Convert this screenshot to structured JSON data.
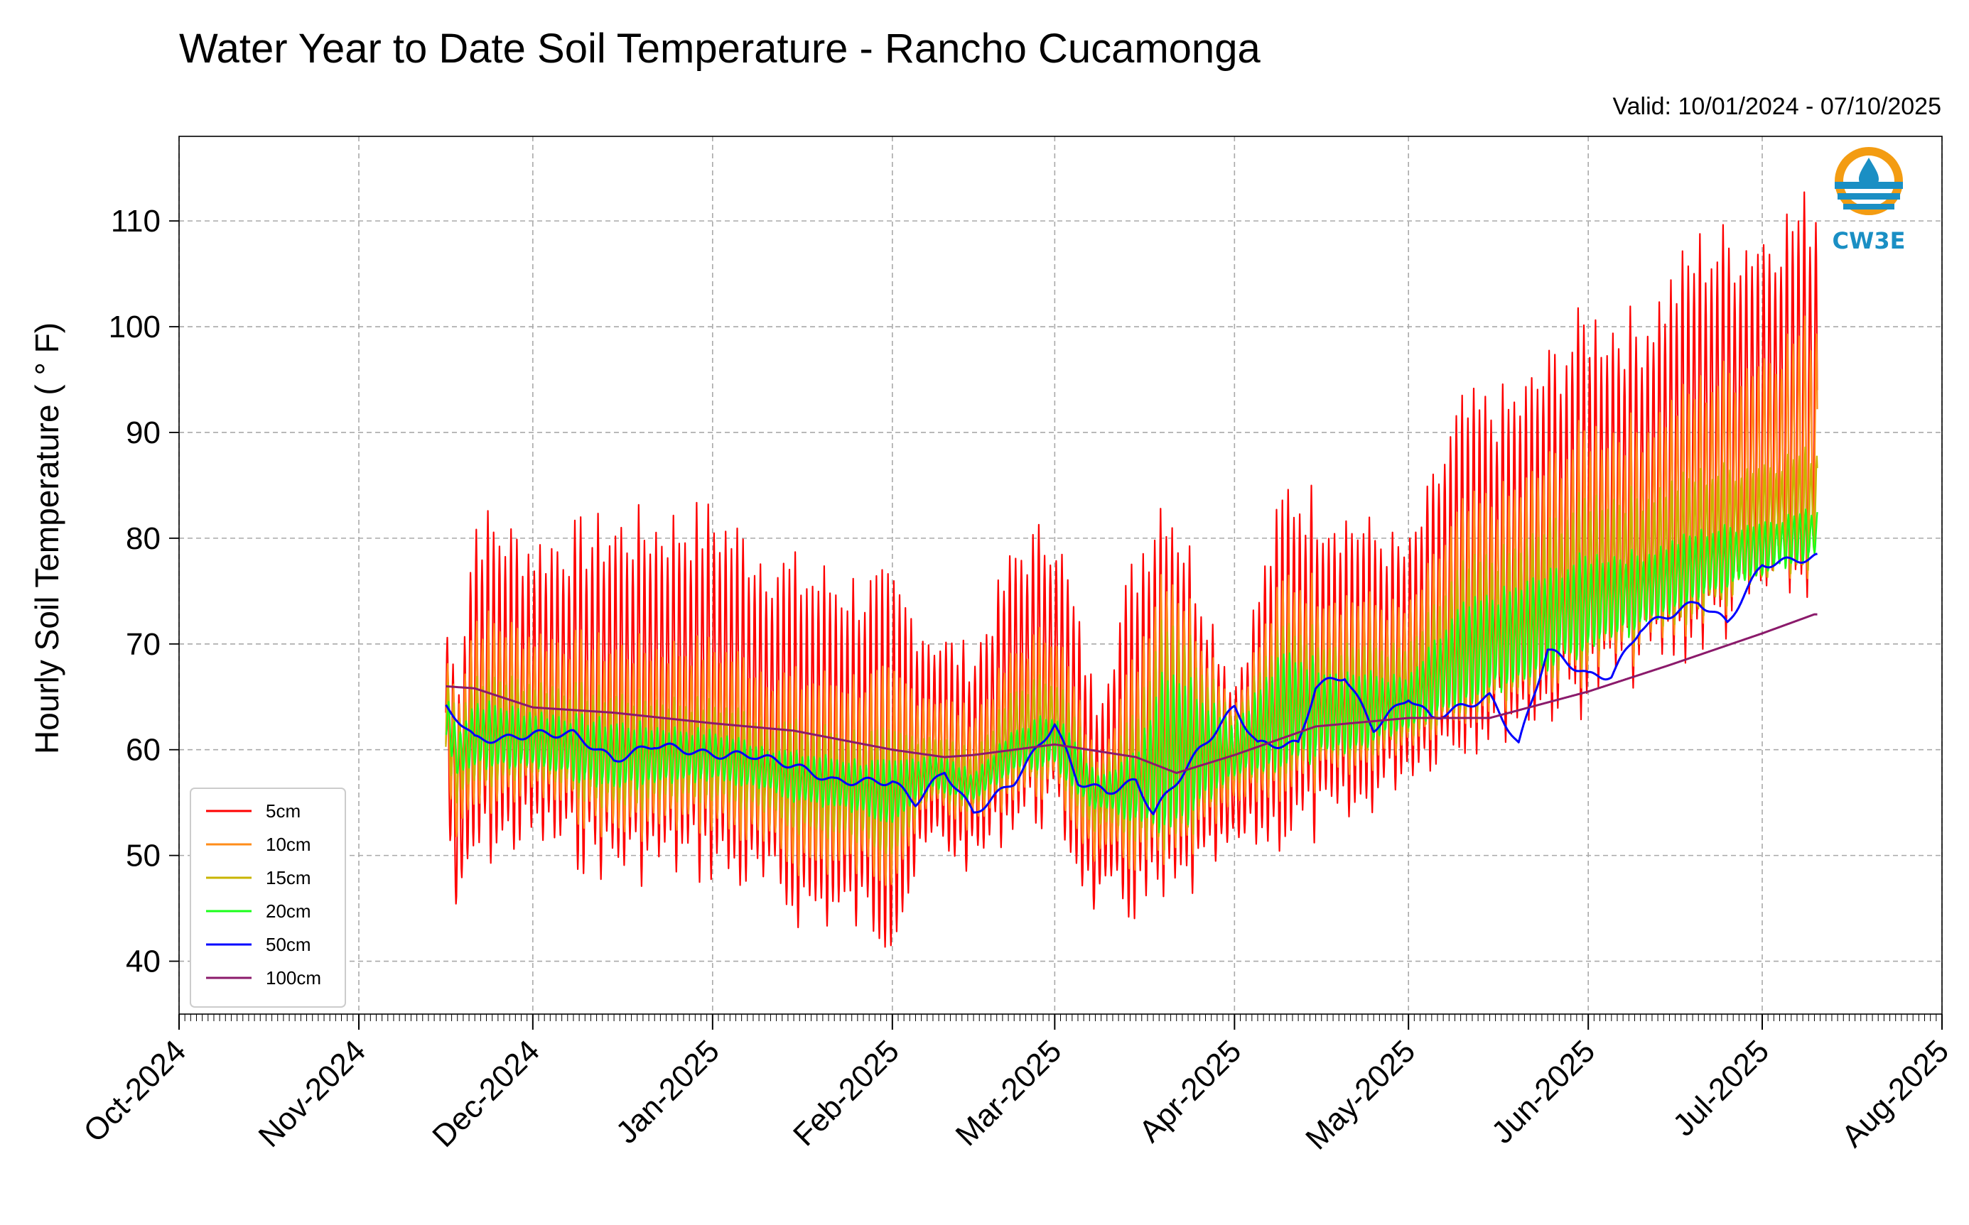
{
  "chart_data": {
    "type": "line",
    "title": "Water Year to Date Soil Temperature - Rancho Cucamonga",
    "subtitle": "Valid: 10/01/2024 - 07/10/2025",
    "ylabel": "Hourly Soil Temperature ( ° F)",
    "xlabel": "",
    "xlim": [
      "2024-10-01",
      "2025-08-01"
    ],
    "ylim": [
      35,
      118
    ],
    "grid": true,
    "legend_position": "lower-left",
    "x_ticks": [
      {
        "date": "2024-10-01",
        "label": "Oct-2024"
      },
      {
        "date": "2024-11-01",
        "label": "Nov-2024"
      },
      {
        "date": "2024-12-01",
        "label": "Dec-2024"
      },
      {
        "date": "2025-01-01",
        "label": "Jan-2025"
      },
      {
        "date": "2025-02-01",
        "label": "Feb-2025"
      },
      {
        "date": "2025-03-01",
        "label": "Mar-2025"
      },
      {
        "date": "2025-04-01",
        "label": "Apr-2025"
      },
      {
        "date": "2025-05-01",
        "label": "May-2025"
      },
      {
        "date": "2025-06-01",
        "label": "Jun-2025"
      },
      {
        "date": "2025-07-01",
        "label": "Jul-2025"
      },
      {
        "date": "2025-08-01",
        "label": "Aug-2025"
      }
    ],
    "y_ticks": [
      40,
      50,
      60,
      70,
      80,
      90,
      100,
      110
    ],
    "series_baseline": {
      "name": "100cm",
      "x": [
        "2024-11-16",
        "2024-11-21",
        "2024-12-01",
        "2024-12-15",
        "2025-01-01",
        "2025-01-15",
        "2025-02-01",
        "2025-02-10",
        "2025-02-15",
        "2025-03-01",
        "2025-03-15",
        "2025-03-22",
        "2025-04-01",
        "2025-04-15",
        "2025-05-01",
        "2025-05-15",
        "2025-06-01",
        "2025-06-15",
        "2025-07-01",
        "2025-07-10"
      ],
      "values": [
        66,
        65.8,
        64,
        63.5,
        62.5,
        61.8,
        60,
        59.3,
        59.5,
        60.5,
        59.3,
        57.8,
        59.5,
        62.2,
        63,
        63,
        65.5,
        68,
        71,
        72.8
      ]
    },
    "series": [
      {
        "name": "5cm",
        "color": "#ff0000",
        "shift": 0,
        "amp": 1.0,
        "x": [
          "2024-11-16",
          "2024-11-18",
          "2024-11-21",
          "2024-12-01",
          "2024-12-15",
          "2025-01-01",
          "2025-01-15",
          "2025-02-01",
          "2025-02-08",
          "2025-02-15",
          "2025-02-22",
          "2025-03-01",
          "2025-03-08",
          "2025-03-15",
          "2025-03-20",
          "2025-04-01",
          "2025-04-10",
          "2025-04-20",
          "2025-05-01",
          "2025-05-10",
          "2025-05-20",
          "2025-06-01",
          "2025-06-10",
          "2025-06-20",
          "2025-07-01",
          "2025-07-10"
        ],
        "upper": [
          73,
          68,
          84,
          81,
          83,
          84,
          79,
          77,
          72,
          70,
          80,
          83,
          66,
          80,
          88,
          67,
          87,
          84,
          80,
          94,
          95,
          103,
          102,
          110,
          111,
          114
        ],
        "lower": [
          54,
          42,
          48,
          50,
          47,
          47,
          43,
          41,
          50,
          48,
          52,
          52,
          44,
          43,
          42,
          50,
          50,
          51,
          57,
          59,
          61,
          63,
          66,
          68,
          72,
          74
        ]
      },
      {
        "name": "10cm",
        "color": "#ff8c1a",
        "shift": 0.08,
        "amp": 0.78,
        "x": [
          "2024-11-16",
          "2024-11-18",
          "2024-11-21",
          "2024-12-01",
          "2024-12-15",
          "2025-01-01",
          "2025-01-15",
          "2025-02-01",
          "2025-02-08",
          "2025-02-15",
          "2025-02-22",
          "2025-03-01",
          "2025-03-08",
          "2025-03-15",
          "2025-03-20",
          "2025-04-01",
          "2025-04-10",
          "2025-04-20",
          "2025-05-01",
          "2025-05-10",
          "2025-05-20",
          "2025-06-01",
          "2025-06-10",
          "2025-06-20",
          "2025-07-01",
          "2025-07-10"
        ],
        "upper": [
          70,
          66,
          74,
          72,
          71,
          71,
          68,
          68,
          66,
          64,
          70,
          73,
          60,
          70,
          81,
          65,
          78,
          76,
          74,
          84,
          86,
          92,
          92,
          96,
          99,
          102
        ],
        "lower": [
          57,
          50,
          53,
          55,
          51,
          52,
          48,
          47,
          54,
          52,
          55,
          55,
          49,
          48,
          46,
          54,
          55,
          56,
          60,
          62,
          64,
          66,
          68,
          71,
          74,
          76
        ]
      },
      {
        "name": "15cm",
        "color": "#c8b400",
        "shift": 0.16,
        "amp": 0.55,
        "x": [
          "2024-11-16",
          "2024-11-18",
          "2024-11-21",
          "2024-12-01",
          "2024-12-15",
          "2025-01-01",
          "2025-01-15",
          "2025-02-01",
          "2025-02-08",
          "2025-02-15",
          "2025-02-22",
          "2025-03-01",
          "2025-03-08",
          "2025-03-15",
          "2025-03-20",
          "2025-04-01",
          "2025-04-10",
          "2025-04-20",
          "2025-05-01",
          "2025-05-10",
          "2025-05-20",
          "2025-06-01",
          "2025-06-10",
          "2025-06-20",
          "2025-07-01",
          "2025-07-10"
        ],
        "upper": [
          68,
          64,
          68,
          67,
          66,
          65,
          63,
          62,
          62,
          60,
          66,
          68,
          59,
          64,
          76,
          64,
          73,
          71,
          70,
          78,
          80,
          85,
          85,
          87,
          88,
          89
        ],
        "lower": [
          59,
          54,
          56,
          57,
          54,
          55,
          52,
          50,
          55,
          54,
          57,
          57,
          52,
          51,
          48,
          56,
          57,
          58,
          61,
          63,
          65,
          68,
          70,
          72,
          75,
          77
        ]
      },
      {
        "name": "20cm",
        "color": "#1aff1a",
        "shift": 0.26,
        "amp": 0.35,
        "x": [
          "2024-11-16",
          "2024-11-18",
          "2024-11-21",
          "2024-12-01",
          "2024-12-15",
          "2025-01-01",
          "2025-01-15",
          "2025-02-01",
          "2025-02-08",
          "2025-02-15",
          "2025-02-22",
          "2025-03-01",
          "2025-03-08",
          "2025-03-15",
          "2025-03-20",
          "2025-04-01",
          "2025-04-10",
          "2025-04-20",
          "2025-05-01",
          "2025-05-10",
          "2025-05-20",
          "2025-06-01",
          "2025-06-10",
          "2025-06-20",
          "2025-07-01",
          "2025-07-10"
        ],
        "upper": [
          66,
          62,
          65,
          64,
          63,
          62,
          60,
          59,
          60,
          58,
          62,
          64,
          58,
          60,
          70,
          63,
          70,
          68,
          67,
          74,
          76,
          79,
          79,
          81,
          82,
          83
        ],
        "lower": [
          61,
          57,
          58,
          58,
          56,
          57,
          55,
          53,
          56,
          55,
          58,
          58,
          54,
          53,
          50,
          57,
          58,
          59,
          62,
          64,
          66,
          69,
          71,
          74,
          76,
          78
        ]
      },
      {
        "name": "50cm",
        "color": "#0000ff",
        "shift": 0,
        "amp": 0,
        "x": [
          "2024-11-16",
          "2024-11-18",
          "2024-11-21",
          "2024-11-26",
          "2024-12-01",
          "2024-12-08",
          "2024-12-15",
          "2024-12-22",
          "2025-01-01",
          "2025-01-08",
          "2025-01-15",
          "2025-01-22",
          "2025-02-01",
          "2025-02-05",
          "2025-02-10",
          "2025-02-15",
          "2025-02-22",
          "2025-03-01",
          "2025-03-05",
          "2025-03-10",
          "2025-03-15",
          "2025-03-18",
          "2025-03-22",
          "2025-03-26",
          "2025-04-01",
          "2025-04-05",
          "2025-04-12",
          "2025-04-15",
          "2025-04-20",
          "2025-04-25",
          "2025-05-01",
          "2025-05-05",
          "2025-05-10",
          "2025-05-15",
          "2025-05-20",
          "2025-05-25",
          "2025-06-01",
          "2025-06-05",
          "2025-06-10",
          "2025-06-20",
          "2025-06-25",
          "2025-07-01",
          "2025-07-10"
        ],
        "values": [
          64,
          63,
          61,
          61,
          61.5,
          61.5,
          59,
          60.5,
          59.5,
          59.5,
          58.5,
          57,
          57,
          55,
          58,
          54,
          57,
          62.5,
          57,
          56,
          57,
          54,
          57,
          60,
          64,
          60.5,
          60.5,
          66,
          67,
          62,
          65,
          63,
          64,
          65,
          60.5,
          69.5,
          67,
          67,
          71.5,
          74,
          72,
          77.5,
          78.2
        ]
      },
      {
        "name": "100cm",
        "color": "#8b1a6b",
        "shift": 0,
        "amp": 0,
        "ref": "series_baseline"
      }
    ]
  },
  "logo": {
    "text": "CW3E",
    "primary": "#f39c12",
    "secondary": "#1a8fc4"
  }
}
